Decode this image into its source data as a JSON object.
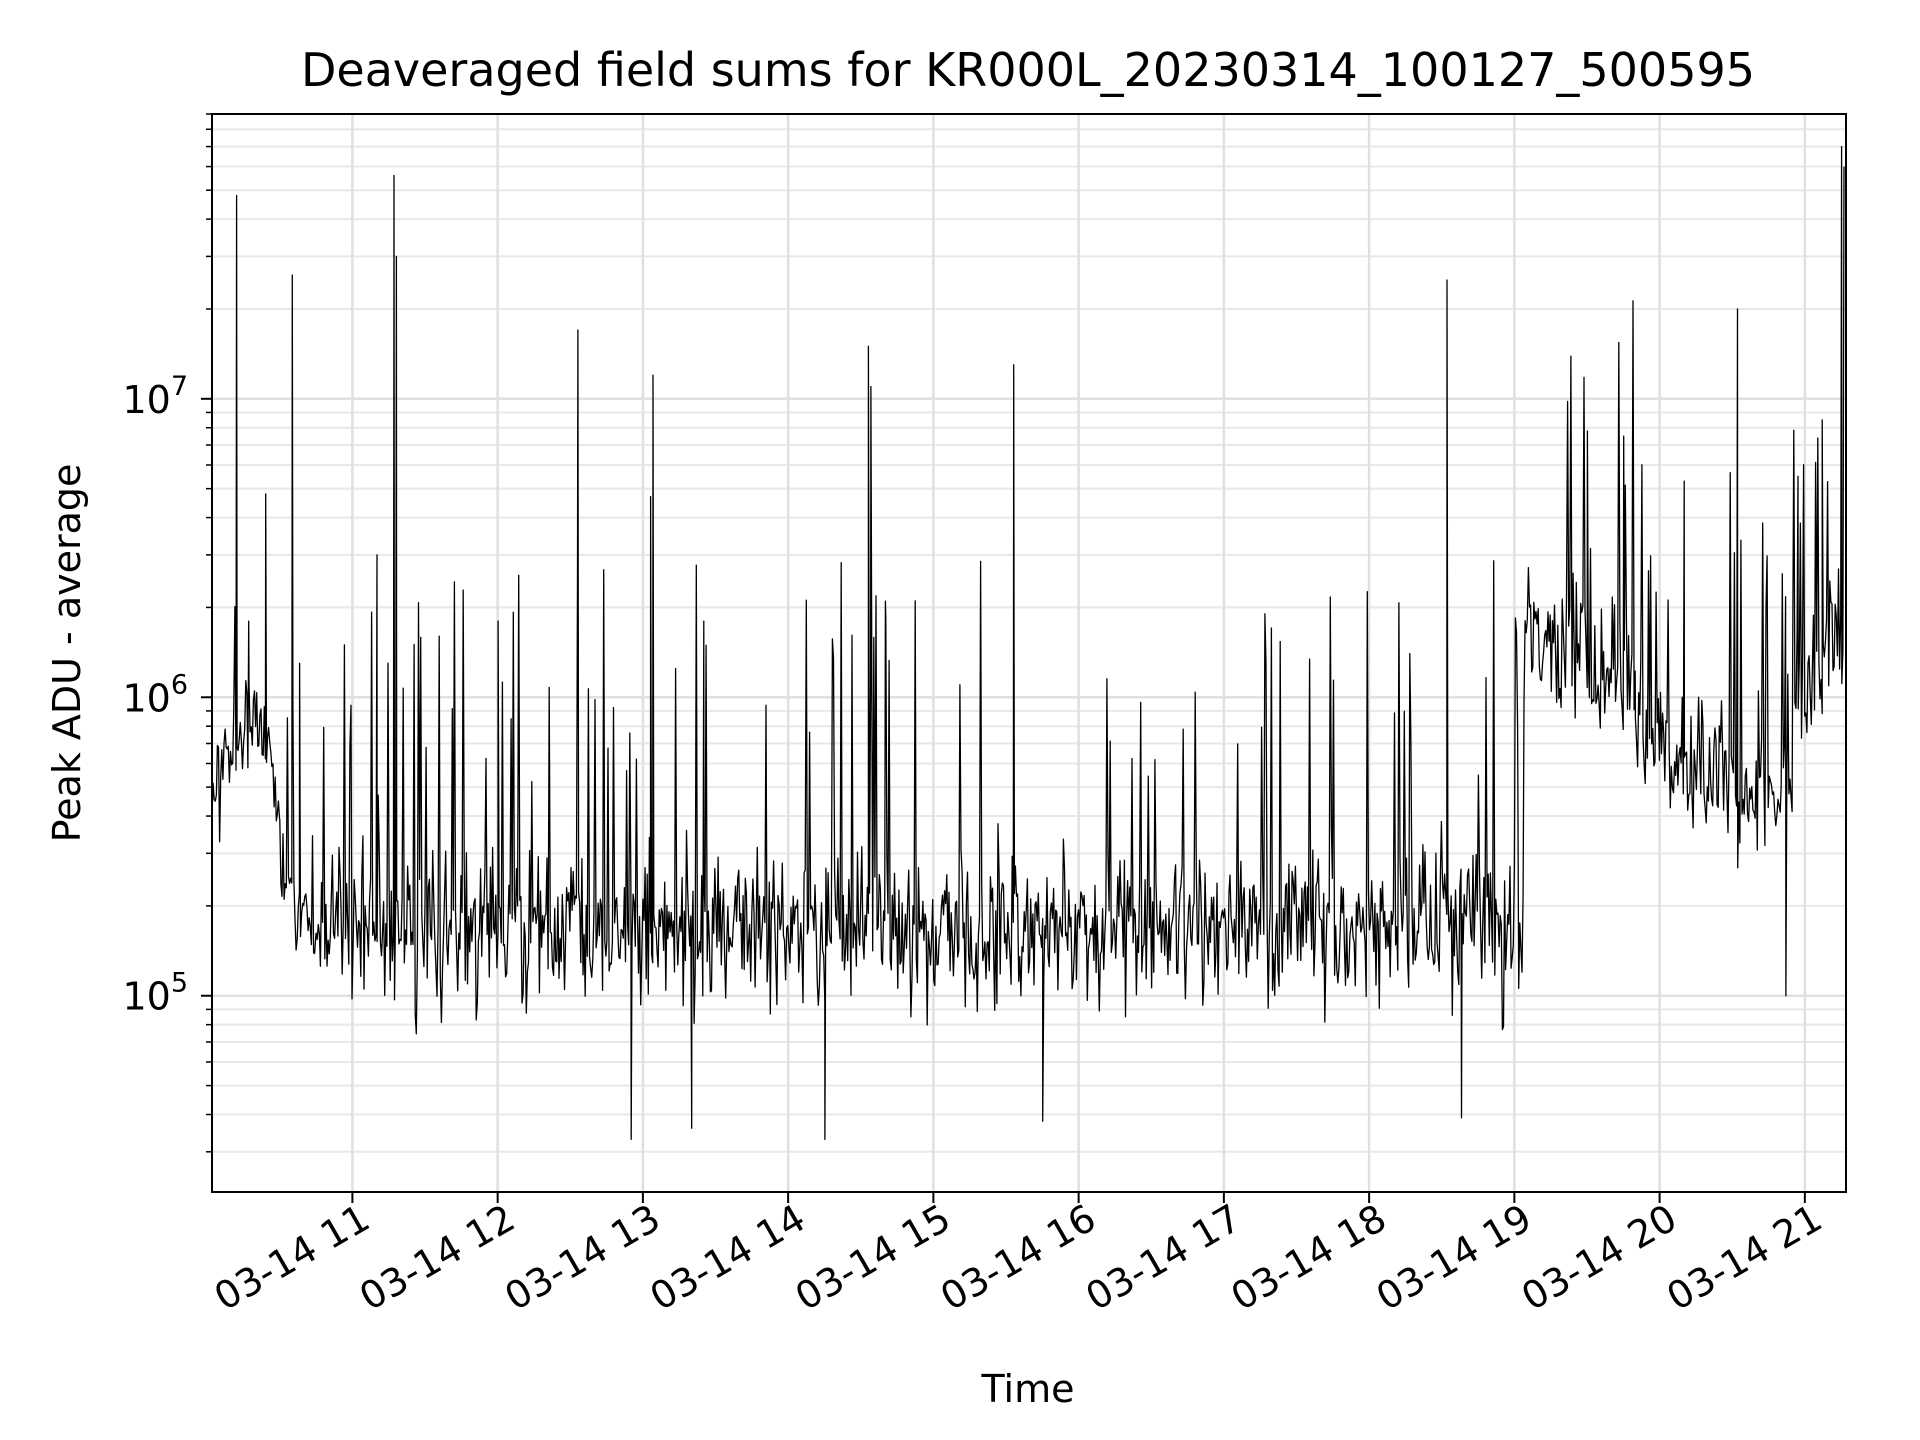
{
  "chart_data": {
    "type": "line",
    "title": "Deaveraged field sums for KR000L_20230314_100127_500595",
    "xlabel": "Time",
    "ylabel": "Peak ADU - average",
    "yscale": "log",
    "xlim": [
      "03-14 10:02",
      "03-14 21:17"
    ],
    "ylim": [
      22000,
      90000000
    ],
    "grid": true,
    "grid_minor": true,
    "line_color": "#000000",
    "x_ticks": [
      "03-14 11",
      "03-14 12",
      "03-14 13",
      "03-14 14",
      "03-14 15",
      "03-14 16",
      "03-14 17",
      "03-14 18",
      "03-14 19",
      "03-14 20",
      "03-14 21"
    ],
    "y_ticks": [
      {
        "base": "10",
        "exp": "5",
        "value": 100000
      },
      {
        "base": "10",
        "exp": "6",
        "value": 1000000
      },
      {
        "base": "10",
        "exp": "7",
        "value": 10000000
      }
    ],
    "baseline_segments": [
      {
        "x_start": "03-14 10:02",
        "x_end": "03-14 10:20",
        "y_start": 500000,
        "y_end": 900000,
        "spread": 2.0
      },
      {
        "x_start": "03-14 10:20",
        "x_end": "03-14 10:30",
        "y_start": 900000,
        "y_end": 450000,
        "spread": 1.8
      },
      {
        "x_start": "03-14 10:30",
        "x_end": "03-14 10:45",
        "y_start": 300000,
        "y_end": 140000,
        "spread": 2.0
      },
      {
        "x_start": "03-14 10:45",
        "x_end": "03-14 19:04",
        "y_start": 170000,
        "y_end": 170000,
        "spread": 2.6
      },
      {
        "x_start": "03-14 19:04",
        "x_end": "03-14 19:50",
        "y_start": 1700000,
        "y_end": 1300000,
        "spread": 2.4
      },
      {
        "x_start": "03-14 19:50",
        "x_end": "03-14 20:30",
        "y_start": 750000,
        "y_end": 550000,
        "spread": 2.4
      },
      {
        "x_start": "03-14 20:30",
        "x_end": "03-14 20:55",
        "y_start": 450000,
        "y_end": 500000,
        "spread": 2.2
      },
      {
        "x_start": "03-14 20:55",
        "x_end": "03-14 21:16",
        "y_start": 900000,
        "y_end": 1800000,
        "spread": 2.2
      }
    ],
    "peaks": [
      {
        "x": "03-14 10:12",
        "y": 48000000
      },
      {
        "x": "03-14 10:17",
        "y": 1800000
      },
      {
        "x": "03-14 10:24",
        "y": 4800000
      },
      {
        "x": "03-14 10:38",
        "y": 1300000
      },
      {
        "x": "03-14 10:35",
        "y": 26000000
      },
      {
        "x": "03-14 11:10",
        "y": 3000000
      },
      {
        "x": "03-14 11:17",
        "y": 56000000
      },
      {
        "x": "03-14 11:18",
        "y": 30000000
      },
      {
        "x": "03-14 12:00",
        "y": 1800000
      },
      {
        "x": "03-14 12:33",
        "y": 17000000
      },
      {
        "x": "03-14 13:04",
        "y": 12000000
      },
      {
        "x": "03-14 13:03",
        "y": 4700000
      },
      {
        "x": "03-14 13:25",
        "y": 1800000
      },
      {
        "x": "03-14 14:33",
        "y": 15000000
      },
      {
        "x": "03-14 14:34",
        "y": 11000000
      },
      {
        "x": "03-14 14:40",
        "y": 2100000
      },
      {
        "x": "03-14 15:33",
        "y": 13000000
      },
      {
        "x": "03-14 18:32",
        "y": 25000000
      },
      {
        "x": "03-14 19:30",
        "y": 7800000
      },
      {
        "x": "03-14 19:45",
        "y": 7500000
      },
      {
        "x": "03-14 20:10",
        "y": 5300000
      },
      {
        "x": "03-14 20:32",
        "y": 20000000
      },
      {
        "x": "03-14 20:57",
        "y": 5500000
      },
      {
        "x": "03-14 21:07",
        "y": 8500000
      },
      {
        "x": "03-14 21:15",
        "y": 70000000
      },
      {
        "x": "03-14 21:16",
        "y": 60000000
      }
    ],
    "dips": [
      {
        "x": "03-14 12:55",
        "y": 33000
      },
      {
        "x": "03-14 13:20",
        "y": 36000
      },
      {
        "x": "03-14 14:15",
        "y": 33000
      },
      {
        "x": "03-14 15:45",
        "y": 38000
      },
      {
        "x": "03-14 18:38",
        "y": 39000
      },
      {
        "x": "03-14 20:52",
        "y": 100000
      }
    ]
  }
}
